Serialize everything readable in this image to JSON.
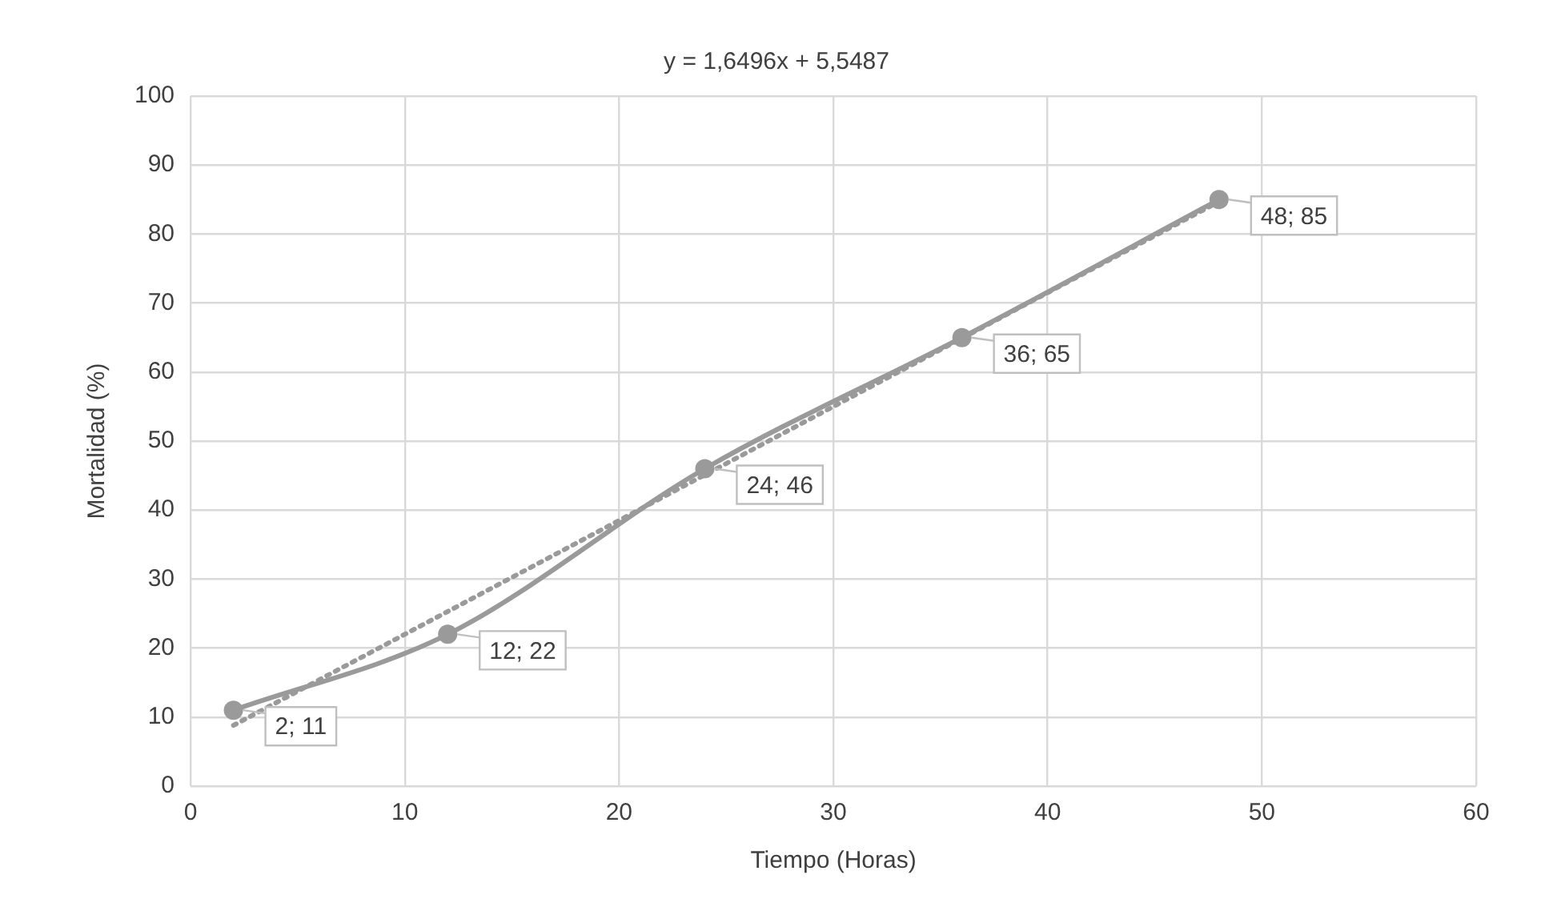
{
  "chart_data": {
    "type": "line",
    "title": "y = 1,6496x + 5,5487",
    "xlabel": "Tiempo (Horas)",
    "ylabel": "Mortalidad (%)",
    "x": [
      2,
      12,
      24,
      36,
      48
    ],
    "series": [
      {
        "color": "#9a9a9a",
        "values": [
          11,
          22,
          46,
          65,
          85
        ],
        "value_labels": [
          "2; 11",
          "12; 22",
          "24; 46",
          "36; 65",
          "48; 85"
        ],
        "marker": "circle",
        "line_style": "solid"
      },
      {
        "type": "line",
        "x": [
          2,
          48
        ],
        "color": "#9a9a9a",
        "values": [
          8.8,
          84.7
        ],
        "marker": "none",
        "line_style": "dotted"
      }
    ],
    "xlim": [
      0,
      60
    ],
    "xticks": [
      0,
      10,
      20,
      30,
      40,
      50,
      60
    ],
    "ylim": [
      0,
      100
    ],
    "yticks": [
      0,
      10,
      20,
      30,
      40,
      50,
      60,
      70,
      80,
      90,
      100
    ],
    "grid": true,
    "legend": false
  }
}
